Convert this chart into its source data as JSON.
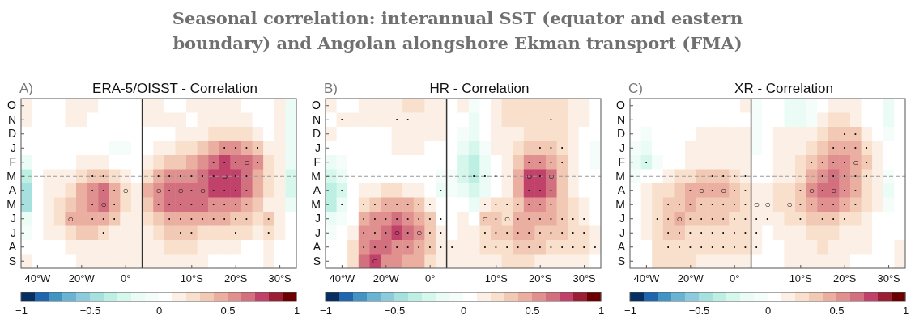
{
  "chart_data": [
    {
      "type": "heatmap",
      "title": "ERA-5/OISST - Correlation",
      "annotations": [
        "Seasonal correlation: interannual SST (equator and eastern boundary) and Angolan alongshore Ekman transport (FMA)",
        "A)"
      ],
      "categories": [
        null,
        "40°W",
        null,
        null,
        null,
        "20°W",
        null,
        null,
        null,
        "0°",
        null,
        null,
        null,
        null,
        null,
        "10°S",
        null,
        null,
        null,
        "20°S",
        null,
        null,
        null,
        "30°S",
        null
      ],
      "y_categories": [
        "O",
        "N",
        "D",
        "J",
        "F",
        "M",
        "A",
        "M",
        "J",
        "J",
        "A",
        "S"
      ],
      "cells": [
        [
          0.15,
          0.05,
          0.05,
          0.05,
          0.15,
          0.15,
          0.15,
          0.05,
          0.05,
          0.05,
          0.05,
          0.15,
          0.15,
          0.05,
          0.05,
          0.15,
          0.15,
          0.15,
          0.15,
          0.15,
          0.05,
          0.05,
          0.05,
          0.15,
          -0.15
        ],
        [
          0.15,
          0.05,
          0.05,
          0.05,
          0.15,
          0.15,
          0.05,
          0.05,
          0.05,
          0.05,
          0.05,
          0.15,
          0.15,
          0.15,
          0.15,
          0.05,
          0.15,
          0.15,
          0.15,
          0.15,
          0.15,
          0.05,
          0.05,
          0.15,
          -0.15
        ],
        [
          0.05,
          0.05,
          0.05,
          0.05,
          0.05,
          0.05,
          0.05,
          0.05,
          0.05,
          0.05,
          0.05,
          0.05,
          0.05,
          0.05,
          0.15,
          0.15,
          0.15,
          0.25,
          0.25,
          0.25,
          0.25,
          0.15,
          0.05,
          0.15,
          -0.15
        ],
        [
          0.05,
          0.05,
          0.05,
          0.05,
          0.05,
          0.05,
          0.05,
          0.05,
          -0.05,
          -0.05,
          0.05,
          0.05,
          0.15,
          0.15,
          0.25,
          0.25,
          0.35,
          0.45,
          0.55,
          0.55,
          0.45,
          0.35,
          0.15,
          0.15,
          -0.15
        ],
        [
          -0.15,
          0.05,
          0.05,
          0.05,
          0.05,
          0.15,
          0.15,
          0.15,
          0.05,
          0.05,
          0.05,
          0.15,
          0.25,
          0.35,
          0.35,
          0.45,
          0.55,
          0.65,
          0.75,
          0.65,
          0.65,
          0.55,
          0.25,
          0.15,
          -0.15
        ],
        [
          -0.35,
          0.05,
          0.15,
          0.15,
          0.15,
          0.25,
          0.35,
          0.35,
          0.25,
          0.15,
          0.05,
          0.25,
          0.45,
          0.55,
          0.55,
          0.55,
          0.65,
          0.75,
          0.75,
          0.75,
          0.65,
          0.45,
          0.25,
          0.15,
          -0.25
        ],
        [
          -0.45,
          0.05,
          0.15,
          0.15,
          0.25,
          0.45,
          0.55,
          0.65,
          0.45,
          0.25,
          0.15,
          0.45,
          0.55,
          0.65,
          0.65,
          0.65,
          0.65,
          0.75,
          0.75,
          0.75,
          0.65,
          0.45,
          0.25,
          0.15,
          -0.25
        ],
        [
          -0.45,
          0.05,
          0.15,
          0.25,
          0.35,
          0.45,
          0.55,
          0.65,
          0.45,
          0.25,
          0.15,
          0.35,
          0.55,
          0.65,
          0.65,
          0.65,
          0.65,
          0.55,
          0.55,
          0.55,
          0.45,
          0.35,
          0.15,
          0.15,
          -0.15
        ],
        [
          -0.15,
          0.05,
          0.15,
          0.25,
          0.45,
          0.45,
          0.45,
          0.45,
          0.35,
          0.15,
          0.15,
          0.25,
          0.35,
          0.45,
          0.45,
          0.45,
          0.45,
          0.45,
          0.45,
          0.35,
          0.35,
          0.25,
          0.35,
          0.15,
          0.05
        ],
        [
          -0.05,
          0.05,
          0.15,
          0.15,
          0.25,
          0.35,
          0.35,
          0.25,
          0.15,
          0.15,
          0.15,
          0.15,
          0.25,
          0.35,
          0.35,
          0.35,
          0.25,
          0.25,
          0.25,
          0.25,
          0.25,
          0.15,
          0.25,
          0.15,
          0.05
        ],
        [
          0.05,
          0.05,
          0.05,
          0.05,
          0.15,
          0.15,
          0.15,
          0.15,
          0.15,
          0.15,
          0.15,
          0.15,
          0.15,
          0.25,
          0.25,
          0.25,
          0.15,
          0.15,
          0.15,
          0.15,
          0.05,
          0.05,
          0.15,
          0.05,
          0.05
        ],
        [
          0.15,
          0.05,
          0.05,
          0.05,
          0.05,
          0.15,
          0.15,
          0.15,
          0.15,
          0.15,
          0.15,
          0.15,
          0.15,
          0.15,
          0.15,
          0.15,
          0.15,
          0.05,
          0.05,
          0.05,
          0.05,
          0.05,
          0.15,
          0.05,
          0.05
        ]
      ],
      "cell_labels": [
        [
          null,
          null,
          null,
          null,
          null,
          null,
          null,
          null,
          null,
          null,
          null,
          null,
          null,
          null,
          null,
          null,
          null,
          null,
          null,
          null,
          null,
          null,
          null,
          null,
          null
        ],
        [
          null,
          null,
          null,
          null,
          null,
          null,
          null,
          null,
          null,
          null,
          null,
          null,
          null,
          null,
          null,
          null,
          null,
          null,
          null,
          null,
          null,
          null,
          null,
          null,
          null
        ],
        [
          null,
          null,
          null,
          null,
          null,
          null,
          null,
          null,
          null,
          null,
          null,
          null,
          null,
          null,
          null,
          null,
          null,
          null,
          null,
          null,
          null,
          null,
          null,
          null,
          null
        ],
        [
          null,
          null,
          null,
          null,
          null,
          null,
          null,
          null,
          null,
          null,
          null,
          null,
          null,
          null,
          null,
          null,
          null,
          null,
          "·",
          "·",
          "·",
          "·",
          null,
          null,
          null
        ],
        [
          null,
          null,
          null,
          null,
          null,
          null,
          null,
          null,
          null,
          null,
          null,
          null,
          null,
          null,
          null,
          null,
          null,
          "·",
          "·",
          "·",
          "○",
          "·",
          null,
          null,
          null
        ],
        [
          null,
          null,
          null,
          null,
          null,
          null,
          "·",
          "·",
          null,
          null,
          null,
          null,
          "·",
          "·",
          "·",
          "·",
          "·",
          "·",
          "○",
          "·",
          "·",
          null,
          null,
          null,
          null
        ],
        [
          null,
          null,
          null,
          null,
          null,
          null,
          "·",
          "·",
          "·",
          "○",
          null,
          null,
          "○",
          "·",
          "○",
          "·",
          "○",
          "·",
          "·",
          "·",
          "·",
          null,
          null,
          null,
          null
        ],
        [
          null,
          null,
          null,
          null,
          null,
          null,
          "·",
          "○",
          "·",
          null,
          null,
          null,
          "·",
          "·",
          "·",
          "·",
          "·",
          "·",
          "·",
          "·",
          "·",
          null,
          null,
          null,
          null
        ],
        [
          null,
          null,
          null,
          null,
          "○",
          null,
          "·",
          "·",
          "·",
          null,
          null,
          null,
          null,
          "·",
          "·",
          "·",
          "·",
          "·",
          "·",
          "·",
          "·",
          null,
          "·",
          null,
          null
        ],
        [
          null,
          null,
          null,
          null,
          null,
          null,
          null,
          "·",
          null,
          null,
          null,
          null,
          null,
          null,
          "·",
          "·",
          null,
          null,
          null,
          "·",
          null,
          null,
          "·",
          null,
          null
        ],
        [
          null,
          null,
          null,
          null,
          null,
          null,
          null,
          null,
          null,
          null,
          null,
          null,
          null,
          null,
          null,
          null,
          null,
          null,
          null,
          null,
          null,
          null,
          null,
          null,
          null
        ],
        [
          null,
          null,
          null,
          null,
          null,
          null,
          null,
          null,
          null,
          null,
          null,
          null,
          null,
          null,
          null,
          null,
          null,
          null,
          null,
          null,
          null,
          null,
          null,
          null,
          null
        ]
      ],
      "ref_lines": [
        {
          "axis": "y",
          "value": "M",
          "color": "#999999",
          "line_style": "dashed"
        }
      ],
      "clim": [
        -1,
        1
      ],
      "cticks": [
        -1,
        -0.5,
        0,
        0.5,
        1
      ]
    },
    {
      "type": "heatmap",
      "title": "HR - Correlation",
      "annotations": [
        "B)"
      ],
      "categories": [
        null,
        "40°W",
        null,
        null,
        null,
        "20°W",
        null,
        null,
        null,
        "0°",
        null,
        null,
        null,
        null,
        null,
        "10°S",
        null,
        null,
        null,
        "20°S",
        null,
        null,
        null,
        "30°S",
        null
      ],
      "y_categories": [
        "O",
        "N",
        "D",
        "J",
        "F",
        "M",
        "A",
        "M",
        "J",
        "J",
        "A",
        "S"
      ],
      "cells": [
        [
          0.15,
          0.05,
          0.05,
          0.15,
          0.15,
          0.15,
          0.15,
          0.25,
          0.25,
          0.15,
          0.15,
          0.05,
          0.15,
          -0.05,
          0.05,
          0.15,
          0.25,
          0.25,
          0.25,
          0.25,
          0.25,
          0.25,
          0.15,
          0.15,
          0.05
        ],
        [
          0.05,
          0.15,
          0.15,
          0.15,
          0.15,
          0.15,
          0.15,
          0.15,
          0.15,
          0.15,
          0.15,
          0.05,
          0.05,
          -0.15,
          0.05,
          0.15,
          0.25,
          0.25,
          0.25,
          0.25,
          0.25,
          0.25,
          0.15,
          0.15,
          0.05
        ],
        [
          0.15,
          0.05,
          0.05,
          0.05,
          0.05,
          0.05,
          0.15,
          0.15,
          0.15,
          0.15,
          0.15,
          0.05,
          -0.05,
          -0.15,
          0.05,
          0.15,
          0.15,
          0.15,
          0.25,
          0.25,
          0.25,
          0.25,
          0.15,
          0.05,
          0.05
        ],
        [
          0.05,
          0.05,
          0.05,
          0.05,
          0.05,
          0.05,
          0.15,
          0.15,
          0.15,
          0.05,
          0.05,
          0.05,
          -0.15,
          -0.25,
          -0.05,
          0.15,
          0.15,
          0.25,
          0.35,
          0.35,
          0.35,
          0.25,
          0.15,
          0.05,
          -0.05
        ],
        [
          -0.15,
          -0.05,
          0.05,
          0.05,
          0.05,
          0.05,
          0.05,
          0.05,
          0.05,
          0.05,
          0.05,
          0.05,
          -0.25,
          -0.35,
          -0.15,
          0.05,
          0.15,
          0.35,
          0.55,
          0.55,
          0.45,
          0.35,
          0.15,
          0.05,
          -0.05
        ],
        [
          -0.25,
          -0.15,
          0.05,
          0.05,
          0.05,
          0.05,
          0.05,
          0.05,
          0.05,
          0.05,
          -0.05,
          -0.05,
          -0.25,
          -0.35,
          -0.15,
          0.05,
          0.15,
          0.45,
          0.75,
          0.75,
          0.65,
          0.35,
          0.15,
          0.05,
          0.05
        ],
        [
          -0.35,
          -0.25,
          0.05,
          0.15,
          0.15,
          0.25,
          0.25,
          0.15,
          0.15,
          0.05,
          -0.15,
          -0.05,
          -0.15,
          -0.25,
          -0.15,
          0.05,
          0.15,
          0.45,
          0.75,
          0.75,
          0.65,
          0.35,
          0.15,
          0.05,
          0.05
        ],
        [
          -0.35,
          -0.15,
          0.05,
          0.25,
          0.35,
          0.45,
          0.45,
          0.45,
          0.35,
          0.15,
          0.05,
          0.05,
          0.05,
          -0.15,
          0.15,
          0.25,
          0.25,
          0.35,
          0.55,
          0.55,
          0.45,
          0.35,
          0.25,
          0.15,
          0.05
        ],
        [
          -0.15,
          -0.05,
          0.05,
          0.45,
          0.55,
          0.55,
          0.65,
          0.55,
          0.45,
          0.35,
          0.05,
          0.05,
          0.15,
          0.05,
          0.35,
          0.35,
          0.25,
          0.45,
          0.45,
          0.45,
          0.45,
          0.35,
          0.25,
          0.15,
          0.05
        ],
        [
          -0.05,
          0.05,
          0.15,
          0.55,
          0.55,
          0.65,
          0.75,
          0.65,
          0.55,
          0.35,
          0.15,
          0.05,
          0.15,
          0.15,
          0.25,
          0.35,
          0.35,
          0.45,
          0.45,
          0.35,
          0.35,
          0.35,
          0.25,
          0.25,
          0.15
        ],
        [
          0.05,
          0.05,
          0.25,
          0.55,
          0.65,
          0.65,
          0.55,
          0.55,
          0.45,
          0.35,
          0.15,
          0.15,
          0.15,
          0.15,
          0.25,
          0.25,
          0.25,
          0.35,
          0.35,
          0.35,
          0.25,
          0.25,
          0.25,
          0.25,
          0.15
        ],
        [
          0.05,
          0.05,
          0.25,
          0.65,
          0.75,
          0.55,
          0.55,
          0.45,
          0.45,
          0.25,
          0.15,
          0.15,
          0.15,
          0.15,
          0.15,
          0.15,
          0.25,
          0.25,
          0.25,
          0.15,
          0.15,
          0.15,
          0.15,
          0.15,
          0.05
        ]
      ],
      "cell_labels": [
        [
          null,
          null,
          null,
          null,
          null,
          null,
          null,
          null,
          null,
          null,
          null,
          null,
          null,
          null,
          null,
          null,
          null,
          null,
          null,
          null,
          null,
          null,
          null,
          null,
          null
        ],
        [
          null,
          "·",
          null,
          null,
          null,
          null,
          "·",
          "·",
          null,
          null,
          null,
          null,
          null,
          null,
          null,
          null,
          null,
          null,
          null,
          null,
          "·",
          null,
          null,
          null,
          null
        ],
        [
          null,
          null,
          null,
          null,
          null,
          null,
          null,
          null,
          null,
          null,
          null,
          null,
          null,
          null,
          null,
          null,
          null,
          null,
          null,
          null,
          null,
          null,
          null,
          null,
          null
        ],
        [
          null,
          null,
          null,
          null,
          null,
          null,
          null,
          null,
          null,
          null,
          null,
          null,
          null,
          null,
          null,
          null,
          null,
          null,
          null,
          "·",
          "·",
          "·",
          null,
          null,
          null
        ],
        [
          null,
          null,
          null,
          null,
          null,
          null,
          null,
          null,
          null,
          null,
          null,
          null,
          null,
          null,
          null,
          null,
          null,
          null,
          "·",
          "·",
          "·",
          "·",
          null,
          null,
          null
        ],
        [
          null,
          null,
          null,
          null,
          null,
          null,
          null,
          null,
          null,
          null,
          null,
          null,
          null,
          "·",
          "·",
          "·",
          null,
          null,
          "○",
          "·",
          "○",
          null,
          null,
          null,
          null
        ],
        [
          null,
          "·",
          null,
          null,
          null,
          null,
          null,
          null,
          null,
          null,
          "·",
          null,
          null,
          null,
          null,
          null,
          null,
          null,
          "·",
          "·",
          "·",
          null,
          null,
          null,
          null
        ],
        [
          null,
          "·",
          null,
          "·",
          "·",
          "·",
          "·",
          "·",
          "·",
          "·",
          null,
          null,
          null,
          null,
          "·",
          "·",
          "·",
          "·",
          "·",
          "·",
          "·",
          null,
          null,
          null,
          null
        ],
        [
          null,
          null,
          null,
          "·",
          "·",
          "·",
          "·",
          "·",
          "·",
          "·",
          "·",
          null,
          null,
          null,
          "○",
          "·",
          "○",
          "·",
          "·",
          "·",
          "·",
          "·",
          "·",
          "·",
          null
        ],
        [
          null,
          null,
          null,
          "·",
          "·",
          "·",
          "○",
          "·",
          "○",
          "·",
          "·",
          null,
          null,
          null,
          "·",
          "·",
          "·",
          "·",
          "·",
          "·",
          "·",
          "·",
          "·",
          "·",
          null
        ],
        [
          null,
          null,
          null,
          "·",
          "·",
          "·",
          "·",
          "·",
          "·",
          "·",
          "·",
          "·",
          null,
          null,
          "·",
          "·",
          "·",
          "·",
          "·",
          "·",
          "·",
          "·",
          "·",
          "·",
          "·"
        ],
        [
          null,
          null,
          null,
          null,
          "○",
          null,
          null,
          null,
          null,
          null,
          null,
          null,
          null,
          null,
          null,
          null,
          null,
          null,
          null,
          null,
          null,
          null,
          null,
          null,
          null
        ]
      ],
      "ref_lines": [
        {
          "axis": "y",
          "value": "M",
          "color": "#999999",
          "line_style": "dashed"
        }
      ],
      "clim": [
        -1,
        1
      ],
      "cticks": [
        -1,
        -0.5,
        0,
        0.5,
        1
      ]
    },
    {
      "type": "heatmap",
      "title": "XR - Correlation",
      "annotations": [
        "C)"
      ],
      "categories": [
        null,
        "40°W",
        null,
        null,
        null,
        "20°W",
        null,
        null,
        null,
        "0°",
        null,
        null,
        null,
        null,
        null,
        "10°S",
        null,
        null,
        null,
        "20°S",
        null,
        null,
        null,
        "30°S",
        null
      ],
      "y_categories": [
        "O",
        "N",
        "D",
        "J",
        "F",
        "M",
        "A",
        "M",
        "J",
        "J",
        "A",
        "S"
      ],
      "cells": [
        [
          0.05,
          0.05,
          0.05,
          0.05,
          0.05,
          0.05,
          0.05,
          0.05,
          0.05,
          0.05,
          0.15,
          -0.05,
          0.05,
          0.05,
          -0.15,
          -0.15,
          -0.05,
          0.05,
          0.15,
          0.15,
          0.15,
          0.05,
          0.05,
          -0.15,
          0.05
        ],
        [
          0.05,
          0.05,
          0.05,
          0.05,
          0.05,
          0.05,
          0.05,
          0.05,
          0.05,
          0.05,
          0.05,
          -0.05,
          0.05,
          0.05,
          -0.15,
          -0.15,
          -0.05,
          0.15,
          0.25,
          0.25,
          0.15,
          0.05,
          0.05,
          -0.15,
          0.05
        ],
        [
          0.05,
          -0.05,
          0.05,
          0.05,
          0.05,
          0.05,
          0.15,
          0.15,
          0.15,
          0.15,
          0.15,
          -0.05,
          0.05,
          0.15,
          0.15,
          0.15,
          0.15,
          0.25,
          0.35,
          0.35,
          0.35,
          0.15,
          0.05,
          -0.05,
          0.05
        ],
        [
          -0.05,
          -0.15,
          0.05,
          0.05,
          0.05,
          0.15,
          0.15,
          0.15,
          0.15,
          0.15,
          0.15,
          -0.05,
          0.05,
          0.15,
          0.15,
          0.15,
          0.25,
          0.35,
          0.45,
          0.45,
          0.45,
          0.25,
          0.15,
          0.05,
          0.05
        ],
        [
          -0.15,
          -0.25,
          -0.05,
          0.05,
          0.05,
          0.15,
          0.15,
          0.15,
          0.15,
          0.15,
          0.15,
          0.05,
          0.05,
          0.15,
          0.15,
          0.25,
          0.35,
          0.45,
          0.55,
          0.55,
          0.45,
          0.35,
          0.15,
          0.05,
          0.05
        ],
        [
          -0.05,
          0.05,
          0.05,
          0.15,
          0.25,
          0.25,
          0.35,
          0.35,
          0.35,
          0.25,
          0.15,
          0.05,
          0.05,
          0.15,
          0.15,
          0.25,
          0.45,
          0.55,
          0.65,
          0.55,
          0.45,
          0.25,
          0.15,
          -0.05,
          0.05
        ],
        [
          0.05,
          0.15,
          0.25,
          0.25,
          0.35,
          0.45,
          0.45,
          0.45,
          0.45,
          0.35,
          0.25,
          0.15,
          0.15,
          0.25,
          0.25,
          0.35,
          0.55,
          0.65,
          0.65,
          0.55,
          0.45,
          0.25,
          0.15,
          -0.15,
          0.05
        ],
        [
          0.05,
          0.15,
          0.25,
          0.35,
          0.35,
          0.45,
          0.35,
          0.35,
          0.35,
          0.35,
          0.25,
          0.15,
          0.15,
          0.25,
          0.25,
          0.35,
          0.45,
          0.55,
          0.55,
          0.45,
          0.35,
          0.25,
          0.15,
          -0.05,
          0.05
        ],
        [
          0.05,
          0.15,
          0.25,
          0.35,
          0.45,
          0.35,
          0.35,
          0.35,
          0.35,
          0.25,
          0.25,
          0.15,
          0.15,
          0.15,
          0.25,
          0.25,
          0.35,
          0.35,
          0.35,
          0.25,
          0.25,
          0.15,
          0.05,
          0.05,
          0.05
        ],
        [
          0.05,
          0.15,
          0.25,
          0.35,
          0.35,
          0.25,
          0.25,
          0.25,
          0.25,
          0.25,
          0.25,
          0.15,
          0.05,
          0.15,
          0.15,
          0.15,
          0.25,
          0.25,
          0.25,
          0.15,
          0.15,
          0.15,
          0.05,
          0.05,
          0.05
        ],
        [
          0.05,
          0.05,
          0.25,
          0.25,
          0.25,
          0.25,
          0.25,
          0.25,
          0.25,
          0.25,
          0.25,
          0.15,
          0.05,
          0.05,
          0.15,
          0.15,
          0.15,
          0.25,
          0.15,
          0.15,
          0.15,
          0.15,
          0.05,
          0.05,
          0.15
        ],
        [
          0.05,
          0.05,
          0.25,
          0.25,
          0.25,
          0.25,
          0.15,
          0.15,
          0.15,
          0.15,
          0.15,
          0.05,
          0.05,
          0.05,
          0.15,
          0.15,
          0.15,
          0.15,
          0.15,
          0.15,
          0.05,
          0.05,
          0.05,
          0.05,
          0.15
        ]
      ],
      "cell_labels": [
        [
          null,
          null,
          null,
          null,
          null,
          null,
          null,
          null,
          null,
          null,
          null,
          null,
          null,
          null,
          null,
          null,
          null,
          null,
          null,
          null,
          null,
          null,
          null,
          null,
          null
        ],
        [
          null,
          null,
          null,
          null,
          null,
          null,
          null,
          null,
          null,
          null,
          null,
          null,
          null,
          null,
          null,
          null,
          null,
          null,
          null,
          null,
          null,
          null,
          null,
          null,
          null
        ],
        [
          null,
          null,
          null,
          null,
          null,
          null,
          null,
          null,
          null,
          null,
          null,
          null,
          null,
          null,
          null,
          null,
          null,
          null,
          null,
          "·",
          "·",
          null,
          null,
          null,
          null
        ],
        [
          null,
          null,
          null,
          null,
          null,
          null,
          null,
          null,
          null,
          null,
          null,
          null,
          null,
          null,
          null,
          null,
          null,
          null,
          "·",
          "·",
          "·",
          "·",
          null,
          null,
          null
        ],
        [
          null,
          "·",
          null,
          null,
          null,
          null,
          null,
          null,
          null,
          null,
          null,
          null,
          null,
          null,
          null,
          null,
          "·",
          "·",
          "·",
          "·",
          "○",
          "·",
          null,
          null,
          null
        ],
        [
          null,
          null,
          null,
          null,
          null,
          null,
          null,
          "·",
          "·",
          "·",
          "·",
          null,
          null,
          null,
          null,
          null,
          null,
          "·",
          "·",
          "·",
          "·",
          "·",
          null,
          null,
          null
        ],
        [
          null,
          null,
          null,
          null,
          null,
          "·",
          "○",
          "·",
          "○",
          "·",
          "·",
          null,
          null,
          null,
          null,
          "·",
          "○",
          "·",
          "○",
          "·",
          "·",
          null,
          null,
          null,
          null
        ],
        [
          null,
          null,
          null,
          "·",
          "·",
          "·",
          "·",
          "·",
          "·",
          "·",
          "·",
          "○",
          "○",
          null,
          "○",
          "·",
          "·",
          "·",
          "·",
          "·",
          "·",
          null,
          null,
          null,
          null
        ],
        [
          null,
          null,
          "·",
          "·",
          "○",
          "·",
          "·",
          "·",
          "·",
          "·",
          "·",
          "·",
          "·",
          null,
          null,
          "·",
          null,
          "·",
          "·",
          "·",
          null,
          null,
          null,
          null,
          null
        ],
        [
          null,
          null,
          null,
          "·",
          "·",
          "·",
          "·",
          "·",
          "·",
          "·",
          "·",
          "·",
          null,
          null,
          null,
          null,
          null,
          null,
          null,
          null,
          null,
          null,
          null,
          null,
          null
        ],
        [
          null,
          null,
          null,
          "·",
          "·",
          "·",
          "·",
          "·",
          "·",
          "·",
          "·",
          "·",
          null,
          null,
          null,
          null,
          null,
          null,
          null,
          null,
          null,
          null,
          null,
          null,
          null
        ],
        [
          null,
          null,
          null,
          null,
          null,
          null,
          null,
          null,
          null,
          null,
          null,
          null,
          null,
          null,
          null,
          null,
          null,
          null,
          null,
          null,
          null,
          null,
          null,
          null,
          null
        ]
      ],
      "ref_lines": [
        {
          "axis": "y",
          "value": "M",
          "color": "#999999",
          "line_style": "dashed"
        }
      ],
      "clim": [
        -1,
        1
      ],
      "cticks": [
        -1,
        -0.5,
        0,
        0.5,
        1
      ]
    }
  ]
}
